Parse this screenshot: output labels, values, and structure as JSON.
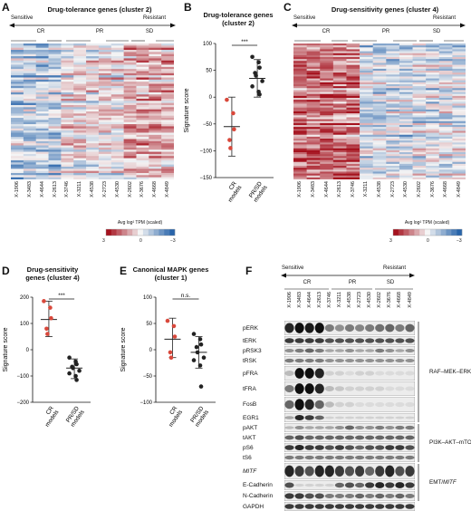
{
  "panels": {
    "A": {
      "label": "A",
      "title": "Drug-tolerance genes (cluster 2)"
    },
    "B": {
      "label": "B",
      "title": "Drug-tolerance genes (cluster 2)"
    },
    "C": {
      "label": "C",
      "title": "Drug-sensitivity genes (cluster 4)"
    },
    "D": {
      "label": "D",
      "title": "Drug-sensitivity genes (cluster 4)"
    },
    "E": {
      "label": "E",
      "title": "Canonical MAPK genes (cluster 1)"
    },
    "F": {
      "label": "F"
    }
  },
  "arrow": {
    "left": "Sensitive",
    "right": "Resistant"
  },
  "groups": {
    "cr": "CR",
    "pr": "PR",
    "sd": "SD"
  },
  "samples": [
    "X-1906",
    "X-3483",
    "X-4644",
    "X-2613",
    "X-3746",
    "X-3211",
    "X-4538",
    "X-2723",
    "X-4530",
    "X-2602",
    "X-3676",
    "X-4668",
    "X-4849"
  ],
  "colorbar": {
    "title": "Avg log² TPM (scaled)",
    "ticks": [
      "3",
      "0",
      "−3"
    ]
  },
  "chart_data": [
    {
      "type": "scatter",
      "panel": "B",
      "title": "Drug-tolerance genes (cluster 2)",
      "ylabel": "Signature score",
      "ylim": [
        -150,
        100
      ],
      "yticks": [
        100,
        50,
        0,
        -50,
        -100,
        -150
      ],
      "categories": [
        "CR models",
        "PR/SD models"
      ],
      "significance": "***",
      "series": [
        {
          "category": "CR models",
          "color": "#d9483b",
          "mean": -55,
          "sd_low": -110,
          "sd_high": 0,
          "points": [
            -5,
            -30,
            -60,
            -80,
            -95
          ]
        },
        {
          "category": "PR/SD models",
          "color": "#222222",
          "mean": 35,
          "sd_low": 0,
          "sd_high": 70,
          "points": [
            75,
            65,
            55,
            45,
            40,
            30,
            20,
            10,
            5
          ]
        }
      ]
    },
    {
      "type": "scatter",
      "panel": "D",
      "title": "Drug-sensitivity genes (cluster 4)",
      "ylabel": "Signature score",
      "ylim": [
        -200,
        200
      ],
      "yticks": [
        200,
        100,
        0,
        -100,
        -200
      ],
      "categories": [
        "CR models",
        "PR/SD models"
      ],
      "significance": "***",
      "series": [
        {
          "category": "CR models",
          "color": "#d9483b",
          "mean": 115,
          "sd_low": 50,
          "sd_high": 185,
          "points": [
            185,
            160,
            120,
            80,
            60
          ]
        },
        {
          "category": "PR/SD models",
          "color": "#222222",
          "mean": -70,
          "sd_low": -110,
          "sd_high": -35,
          "points": [
            -30,
            -45,
            -55,
            -65,
            -70,
            -80,
            -90,
            -100,
            -115
          ]
        }
      ]
    },
    {
      "type": "scatter",
      "panel": "E",
      "title": "Canonical MAPK genes (cluster 1)",
      "ylabel": "Signature score",
      "ylim": [
        -100,
        100
      ],
      "yticks": [
        100,
        50,
        0,
        -50,
        -100
      ],
      "categories": [
        "CR models",
        "PR/SD models"
      ],
      "significance": "n.s.",
      "series": [
        {
          "category": "CR models",
          "color": "#d9483b",
          "mean": 20,
          "sd_low": -15,
          "sd_high": 60,
          "points": [
            55,
            45,
            25,
            -5,
            -15
          ]
        },
        {
          "category": "PR/SD models",
          "color": "#222222",
          "mean": -5,
          "sd_low": -35,
          "sd_high": 25,
          "points": [
            30,
            20,
            10,
            5,
            -5,
            -15,
            -20,
            -30,
            -70
          ]
        }
      ]
    }
  ],
  "blots": {
    "rows": [
      {
        "name": "pERK",
        "italic": false
      },
      {
        "name": "tERK",
        "italic": false
      },
      {
        "name": "pRSK3",
        "italic": false
      },
      {
        "name": "tRSK",
        "italic": false
      },
      {
        "name": "pFRA",
        "italic": false
      },
      {
        "name": "tFRA",
        "italic": false
      },
      {
        "name": "FosB",
        "italic": false
      },
      {
        "name": "EGR1",
        "italic": false
      },
      {
        "name": "pAKT",
        "italic": false
      },
      {
        "name": "tAKT",
        "italic": false
      },
      {
        "name": "pS6",
        "italic": false
      },
      {
        "name": "tS6",
        "italic": false
      },
      {
        "name": "MITF",
        "italic": true
      },
      {
        "name": "E-Cadherin",
        "italic": false
      },
      {
        "name": "N-Cadherin",
        "italic": false
      },
      {
        "name": "GAPDH",
        "italic": false
      }
    ],
    "pathways": [
      {
        "name": "RAF–MEK–ERK",
        "italic_part": ""
      },
      {
        "name": "PI3K–AKT–mTOR",
        "italic_part": ""
      },
      {
        "name": "EMT/",
        "italic_part": "MITF"
      }
    ]
  }
}
